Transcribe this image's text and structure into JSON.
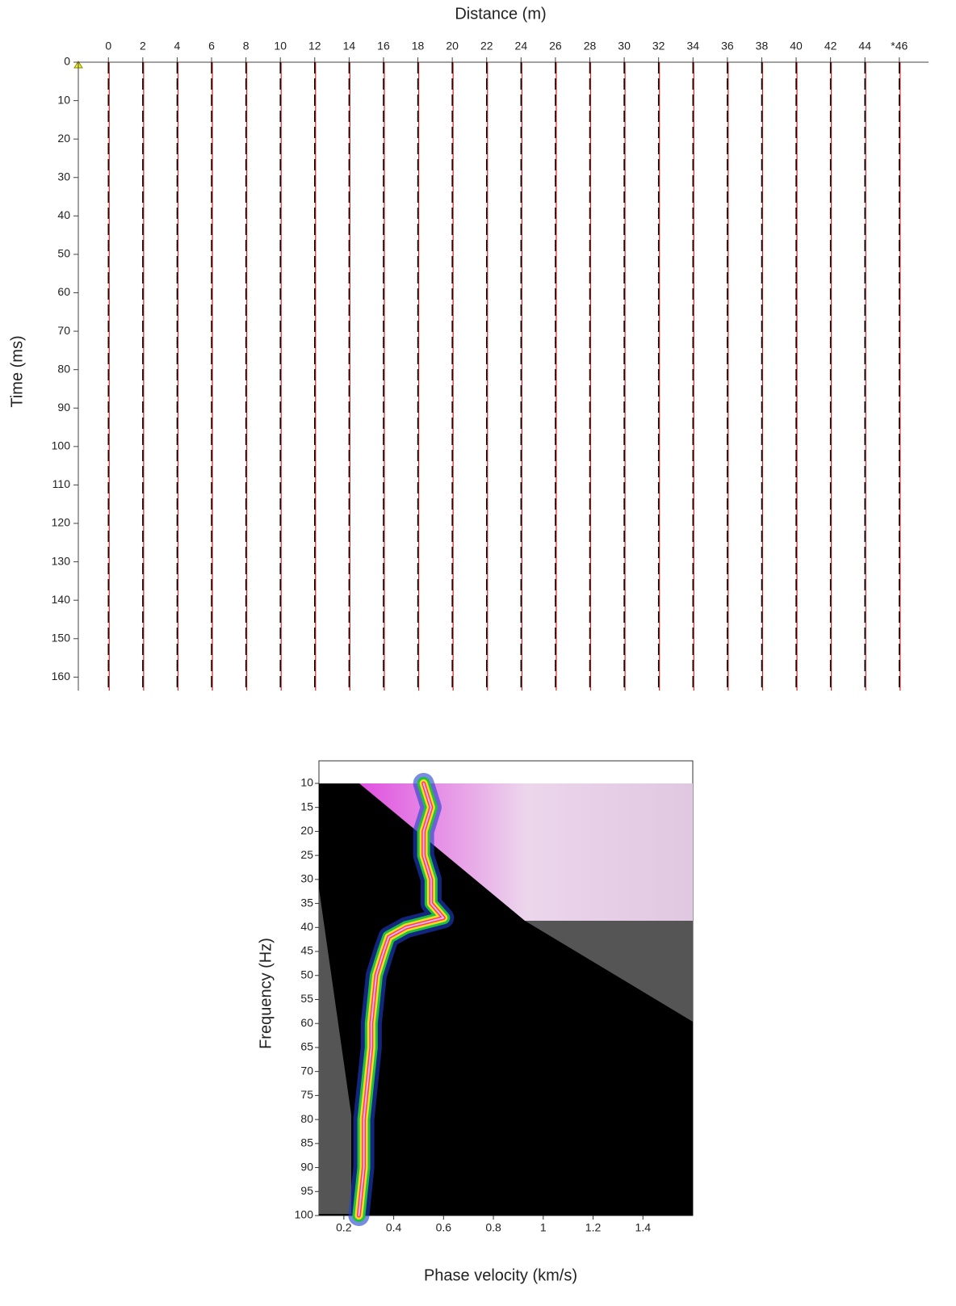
{
  "chart_data": [
    {
      "type": "seismogram",
      "title": "Distance (m)",
      "y_label": "Time (ms)",
      "xlim": [
        -1.75,
        47.7
      ],
      "ylim": [
        0,
        163.5
      ],
      "y_inverted": true,
      "xticks": [
        0,
        2,
        4,
        6,
        8,
        10,
        12,
        14,
        16,
        18,
        20,
        22,
        24,
        26,
        28,
        30,
        32,
        34,
        36,
        38,
        40,
        42,
        44,
        {
          "value": 46,
          "label": "*46"
        }
      ],
      "yticks": [
        0,
        10,
        20,
        30,
        40,
        50,
        60,
        70,
        80,
        90,
        100,
        110,
        120,
        130,
        140,
        150,
        160
      ]
    },
    {
      "type": "dispersion",
      "x_label": "Phase velocity (km/s)",
      "y_label": "Frequency (Hz)",
      "xlim": [
        0.1,
        1.6
      ],
      "ylim": [
        5.3,
        100
      ],
      "y_inverted": true,
      "xticks": [
        0.2,
        0.4,
        0.6,
        0.8,
        1,
        1.2,
        1.4
      ],
      "yticks": [
        10,
        15,
        20,
        25,
        30,
        35,
        40,
        45,
        50,
        55,
        60,
        65,
        70,
        75,
        80,
        85,
        90,
        95,
        100
      ],
      "x": [
        0.52,
        0.55,
        0.52,
        0.52,
        0.55,
        0.55,
        0.6,
        0.45,
        0.38,
        0.36,
        0.33,
        0.32,
        0.31,
        0.31,
        0.3,
        0.29,
        0.28,
        0.28,
        0.28,
        0.27,
        0.26
      ],
      "y": [
        10,
        15,
        20,
        25,
        30,
        35,
        38,
        40,
        42,
        45,
        50,
        55,
        60,
        65,
        70,
        75,
        80,
        85,
        90,
        95,
        100
      ]
    }
  ]
}
